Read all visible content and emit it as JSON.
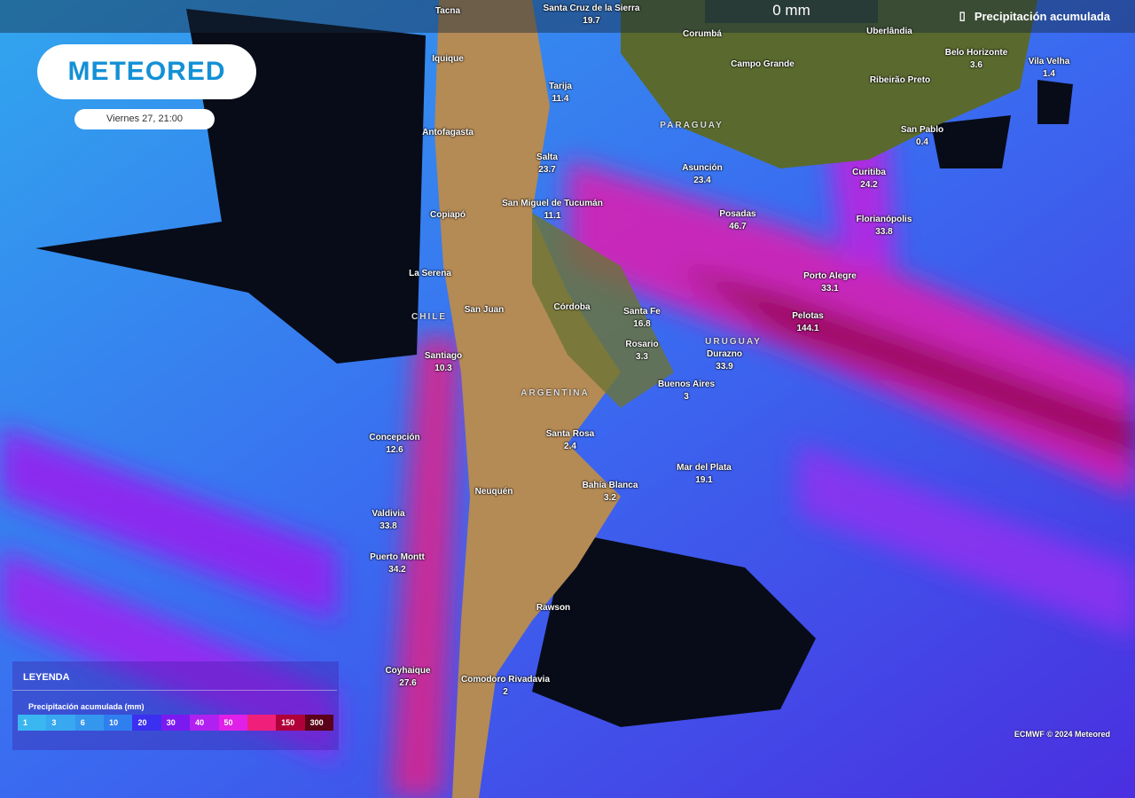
{
  "header": {
    "value": "0 mm",
    "layer_label": "Precipitación acumulada",
    "layer_icon": "rain-gauge-icon"
  },
  "brand": {
    "logo": "METEORED",
    "date": "Viernes 27, 21:00"
  },
  "countries": [
    "PARAGUAY",
    "CHILE",
    "ARGENTINA",
    "URUGUAY"
  ],
  "cities": [
    {
      "name": "Tacna",
      "value": ""
    },
    {
      "name": "Santa Cruz de la Sierra",
      "value": "19.7"
    },
    {
      "name": "Corumbá",
      "value": ""
    },
    {
      "name": "Uberlândia",
      "value": ""
    },
    {
      "name": "Iquique",
      "value": ""
    },
    {
      "name": "Campo Grande",
      "value": ""
    },
    {
      "name": "Belo Horizonte",
      "value": "3.6"
    },
    {
      "name": "Vila Velha",
      "value": "1.4"
    },
    {
      "name": "Ribeirão Preto",
      "value": ""
    },
    {
      "name": "Tarija",
      "value": "11.4"
    },
    {
      "name": "Antofagasta",
      "value": ""
    },
    {
      "name": "San Pablo",
      "value": "0.4"
    },
    {
      "name": "Salta",
      "value": "23.7"
    },
    {
      "name": "Asunción",
      "value": "23.4"
    },
    {
      "name": "Curitiba",
      "value": "24.2"
    },
    {
      "name": "San Miguel de Tucumán",
      "value": "11.1"
    },
    {
      "name": "Copiapó",
      "value": ""
    },
    {
      "name": "Posadas",
      "value": "46.7"
    },
    {
      "name": "Florianópolis",
      "value": "33.8"
    },
    {
      "name": "La Serena",
      "value": ""
    },
    {
      "name": "Porto Alegre",
      "value": "33.1"
    },
    {
      "name": "Córdoba",
      "value": ""
    },
    {
      "name": "San Juan",
      "value": ""
    },
    {
      "name": "Santa Fe",
      "value": "16.8"
    },
    {
      "name": "Pelotas",
      "value": "144.1"
    },
    {
      "name": "Rosario",
      "value": "3.3"
    },
    {
      "name": "Santiago",
      "value": "10.3"
    },
    {
      "name": "Durazno",
      "value": "33.9"
    },
    {
      "name": "Buenos Aires",
      "value": "3"
    },
    {
      "name": "Concepción",
      "value": "12.6"
    },
    {
      "name": "Santa Rosa",
      "value": "2.4"
    },
    {
      "name": "Mar del Plata",
      "value": "19.1"
    },
    {
      "name": "Bahía Blanca",
      "value": "3.2"
    },
    {
      "name": "Neuquén",
      "value": ""
    },
    {
      "name": "Valdivia",
      "value": "33.8"
    },
    {
      "name": "Puerto Montt",
      "value": "34.2"
    },
    {
      "name": "Rawson",
      "value": ""
    },
    {
      "name": "Coyhaique",
      "value": "27.6"
    },
    {
      "name": "Comodoro Rivadavia",
      "value": "2"
    }
  ],
  "legend": {
    "title": "LEYENDA",
    "subtitle": "Precipitación acumulada (mm)",
    "stops": [
      {
        "label": "1",
        "color": "#3ab6f0"
      },
      {
        "label": "3",
        "color": "#38a8f0"
      },
      {
        "label": "6",
        "color": "#3596ee"
      },
      {
        "label": "10",
        "color": "#2f7ff0"
      },
      {
        "label": "20",
        "color": "#3b2ff0"
      },
      {
        "label": "30",
        "color": "#7a1af0"
      },
      {
        "label": "40",
        "color": "#b020f0"
      },
      {
        "label": "50",
        "color": "#e020e8"
      },
      {
        "label": "",
        "color": "#f0207a"
      },
      {
        "label": "150",
        "color": "#b0003a"
      },
      {
        "label": "300",
        "color": "#5a0018"
      }
    ]
  },
  "credit": "ECMWF © 2024 Meteored"
}
